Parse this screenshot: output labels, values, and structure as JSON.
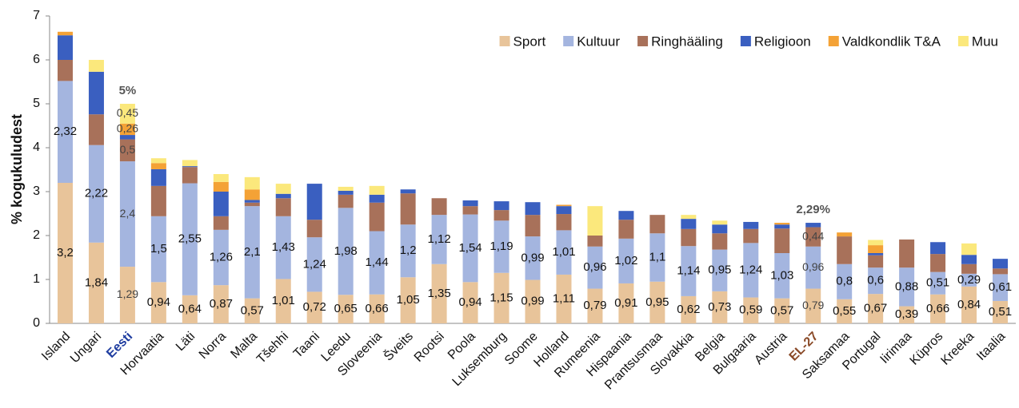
{
  "chart_data": {
    "type": "stacked_bar",
    "y_label": "% kogukuludest",
    "categories": [
      "Island",
      "Ungari",
      "Eesti",
      "Horvaatia",
      "Läti",
      "Norra",
      "Malta",
      "Tšehhi",
      "Taani",
      "Leedu",
      "Sloveenia",
      "Šveits",
      "Rootsi",
      "Poola",
      "Luksemburg",
      "Soome",
      "Holland",
      "Rumeenia",
      "Hispaania",
      "Prantsusmaa",
      "Slovakkia",
      "Belgia",
      "Bulgaaria",
      "Austria",
      "EL-27",
      "Saksamaa",
      "Portugal",
      "Iirimaa",
      "Küpros",
      "Kreeka",
      "Itaalia"
    ],
    "category_colors": [
      null,
      null,
      "#1f3da0",
      null,
      null,
      null,
      null,
      null,
      null,
      null,
      null,
      null,
      null,
      null,
      null,
      null,
      null,
      null,
      null,
      null,
      null,
      null,
      null,
      null,
      "#8a4a28",
      null,
      null,
      null,
      null,
      null,
      null
    ],
    "series": [
      {
        "name": "Sport",
        "color": "#e8c49a",
        "values": [
          3.2,
          1.84,
          1.29,
          0.94,
          0.64,
          0.87,
          0.57,
          1.01,
          0.72,
          0.65,
          0.66,
          1.05,
          1.35,
          0.94,
          1.15,
          0.99,
          1.11,
          0.79,
          0.91,
          0.95,
          0.62,
          0.73,
          0.59,
          0.57,
          0.79,
          0.55,
          0.67,
          0.39,
          0.66,
          0.84,
          0.51
        ],
        "value_labels": [
          "3,2",
          "1,84",
          "1,29",
          "0,94",
          "0,64",
          "0,87",
          "0,57",
          "1,01",
          "0,72",
          "0,65",
          "0,66",
          "1,05",
          "1,35",
          "0,94",
          "1,15",
          "0,99",
          "1,11",
          "0,79",
          "0,91",
          "0,95",
          "0,62",
          "0,73",
          "0,59",
          "0,57",
          "0,79",
          "0,55",
          "0,67",
          "0,39",
          "0,66",
          "0,84",
          "0,51"
        ]
      },
      {
        "name": "Kultuur",
        "color": "#a4b5df",
        "values": [
          2.32,
          2.22,
          2.4,
          1.5,
          2.55,
          1.26,
          2.1,
          1.43,
          1.24,
          1.98,
          1.44,
          1.2,
          1.12,
          1.54,
          1.19,
          0.99,
          1.01,
          0.96,
          1.02,
          1.1,
          1.14,
          0.95,
          1.24,
          1.03,
          0.96,
          0.8,
          0.6,
          0.88,
          0.51,
          0.29,
          0.61
        ],
        "value_labels": [
          "2,32",
          "2,22",
          "2,4",
          "1,5",
          "2,55",
          "1,26",
          "2,1",
          "1,43",
          "1,24",
          "1,98",
          "1,44",
          "1,2",
          "1,12",
          "1,54",
          "1,19",
          "0,99",
          "1,01",
          "0,96",
          "1,02",
          "1,1",
          "1,14",
          "0,95",
          "1,24",
          "1,03",
          "0,96",
          "0,8",
          "0,6",
          "0,88",
          "0,51",
          "0,29",
          "0,61"
        ]
      },
      {
        "name": "Ringhääling",
        "color": "#a8715a",
        "values": [
          0.48,
          0.7,
          0.5,
          0.69,
          0.37,
          0.31,
          0.08,
          0.41,
          0.4,
          0.3,
          0.65,
          0.71,
          0.38,
          0.19,
          0.24,
          0.49,
          0.37,
          0.25,
          0.43,
          0.42,
          0.39,
          0.37,
          0.32,
          0.56,
          0.44,
          0.63,
          0.28,
          0.64,
          0.41,
          0.22,
          0.13
        ],
        "value_labels": [
          null,
          null,
          "0,5",
          null,
          null,
          null,
          null,
          null,
          null,
          null,
          null,
          null,
          null,
          null,
          null,
          null,
          null,
          null,
          null,
          null,
          null,
          null,
          null,
          null,
          "0,44",
          null,
          null,
          null,
          null,
          null,
          null
        ]
      },
      {
        "name": "Religioon",
        "color": "#3a5fc0",
        "values": [
          0.56,
          0.97,
          0.1,
          0.38,
          0.02,
          0.56,
          0.06,
          0.1,
          0.82,
          0.09,
          0.18,
          0.09,
          0,
          0.13,
          0.2,
          0.29,
          0.18,
          0,
          0.2,
          0,
          0.23,
          0.2,
          0.16,
          0.09,
          0.1,
          0,
          0.05,
          0,
          0.27,
          0.21,
          0.22
        ]
      },
      {
        "name": "Valdkondlik T&A",
        "color": "#f4a236",
        "values": [
          0.08,
          0,
          0.26,
          0.14,
          0,
          0.22,
          0.24,
          0,
          0,
          0,
          0,
          0,
          0,
          0,
          0,
          0,
          0.03,
          0,
          0,
          0,
          0,
          0,
          0,
          0.04,
          0,
          0.09,
          0.18,
          0,
          0,
          0,
          0
        ],
        "value_labels": [
          null,
          null,
          "0,26",
          null,
          null,
          null,
          null,
          null,
          null,
          null,
          null,
          null,
          null,
          null,
          null,
          null,
          null,
          null,
          null,
          null,
          null,
          null,
          null,
          null,
          null,
          null,
          null,
          null,
          null,
          null,
          null
        ]
      },
      {
        "name": "Muu",
        "color": "#fbe87c",
        "values": [
          0,
          0.27,
          0.45,
          0.11,
          0.14,
          0.18,
          0.28,
          0.23,
          0,
          0.09,
          0.2,
          0,
          0,
          0,
          0,
          0,
          0,
          0.67,
          0,
          0,
          0.09,
          0.09,
          0,
          0,
          0,
          0,
          0.12,
          0,
          0,
          0.26,
          0
        ],
        "value_labels": [
          null,
          null,
          "0,45",
          null,
          null,
          null,
          null,
          null,
          null,
          null,
          null,
          null,
          null,
          null,
          null,
          null,
          null,
          null,
          null,
          null,
          null,
          null,
          null,
          null,
          null,
          null,
          null,
          null,
          null,
          null,
          null
        ]
      }
    ],
    "annotations": [
      {
        "text": "5%",
        "category": "Eesti"
      },
      {
        "text": "2,29%",
        "category": "EL-27"
      }
    ],
    "ylim": [
      0,
      7
    ],
    "yticks": [
      0,
      1,
      2,
      3,
      4,
      5,
      6,
      7
    ],
    "grid": false,
    "legend": "top-right"
  }
}
